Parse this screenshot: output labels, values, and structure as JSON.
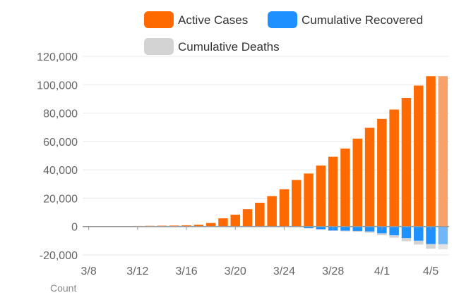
{
  "colors": {
    "active": "#ff6a00",
    "active_faded": "#f7a26a",
    "recovered": "#1e90ff",
    "recovered_faded": "#71b6f9",
    "deaths": "#d3d3d3",
    "deaths_faded": "#e3e3e3",
    "grid": "#e8e8e8",
    "axis": "#999999",
    "tick_text": "#666666",
    "legend_text": "#333333"
  },
  "chart_data": {
    "type": "bar",
    "stacked": true,
    "title": "",
    "xlabel": "",
    "ylabel": "",
    "footer_label": "Count",
    "ylim": [
      -20000,
      120000
    ],
    "yticks": [
      -20000,
      0,
      20000,
      40000,
      60000,
      80000,
      100000,
      120000
    ],
    "ytick_labels": [
      "-20,000",
      "0",
      "20,000",
      "40,000",
      "60,000",
      "80,000",
      "100,000",
      "120,000"
    ],
    "xtick_labels": [
      "3/8",
      "3/12",
      "3/16",
      "3/20",
      "3/24",
      "3/28",
      "4/1",
      "4/5"
    ],
    "xtick_indices": [
      0,
      4,
      8,
      12,
      16,
      20,
      24,
      28
    ],
    "grid": true,
    "legend_position": "top-right",
    "categories": [
      "3/8",
      "3/9",
      "3/10",
      "3/11",
      "3/12",
      "3/13",
      "3/14",
      "3/15",
      "3/16",
      "3/17",
      "3/18",
      "3/19",
      "3/20",
      "3/21",
      "3/22",
      "3/23",
      "3/24",
      "3/25",
      "3/26",
      "3/27",
      "3/28",
      "3/29",
      "3/30",
      "3/31",
      "4/1",
      "4/2",
      "4/3",
      "4/4",
      "4/5",
      "4/6"
    ],
    "series": [
      {
        "name": "Active Cases",
        "values": [
          200,
          250,
          300,
          350,
          400,
          500,
          600,
          700,
          900,
          1300,
          2500,
          5800,
          8400,
          12200,
          16800,
          21500,
          26300,
          32800,
          37400,
          43000,
          49200,
          55000,
          62000,
          69600,
          75900,
          82500,
          90700,
          99400,
          106000,
          106000
        ]
      },
      {
        "name": "Cumulative Recovered",
        "values": [
          0,
          0,
          0,
          0,
          0,
          0,
          0,
          0,
          0,
          0,
          0,
          0,
          0,
          0,
          0,
          0,
          -100,
          -200,
          -1200,
          -1900,
          -2800,
          -2900,
          -3100,
          -3500,
          -4800,
          -6200,
          -8200,
          -10000,
          -12300,
          -12500
        ]
      },
      {
        "name": "Cumulative Deaths",
        "values": [
          0,
          0,
          0,
          0,
          0,
          0,
          0,
          0,
          0,
          0,
          0,
          0,
          0,
          0,
          0,
          0,
          0,
          0,
          0,
          -200,
          -300,
          -500,
          -600,
          -900,
          -1300,
          -1700,
          -2100,
          -2700,
          -3300,
          -3500
        ]
      }
    ],
    "faded_last_n": 1
  },
  "legend": [
    {
      "label": "Active Cases",
      "color_key": "active"
    },
    {
      "label": "Cumulative Recovered",
      "color_key": "recovered"
    },
    {
      "label": "Cumulative Deaths",
      "color_key": "deaths"
    }
  ]
}
